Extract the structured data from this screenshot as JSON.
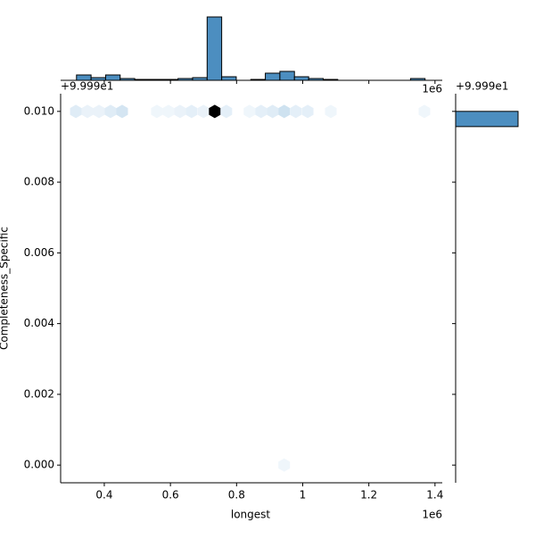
{
  "chart_data": {
    "type": "hexbin",
    "x_label": "longest",
    "y_label": "Completeness_Specific",
    "x_offset_label": "1e6",
    "y_offset_label": "+9.999e1",
    "marginal_x_offset_label": "1e6",
    "marginal_y_offset_label": "+9.999e1",
    "xlim": [
      0.268,
      1.422
    ],
    "xticks": [
      0.4,
      0.6,
      0.8,
      1.0,
      1.2,
      1.4
    ],
    "ylim": [
      -0.0005,
      0.0105
    ],
    "yticks": [
      {
        "value": 0,
        "label": "0.000"
      },
      {
        "value": 0.002,
        "label": "0.002"
      },
      {
        "value": 0.004,
        "label": "0.004"
      },
      {
        "value": 0.006,
        "label": "0.006"
      },
      {
        "value": 0.008,
        "label": "0.008"
      },
      {
        "value": 0.01,
        "label": "0.010"
      }
    ],
    "hexbins": {
      "x": [
        0.314,
        0.349,
        0.384,
        0.419,
        0.454,
        0.559,
        0.594,
        0.629,
        0.664,
        0.7,
        0.734,
        0.769,
        0.839,
        0.874,
        0.909,
        0.944,
        0.979,
        1.015,
        1.085,
        1.368,
        0.944
      ],
      "y": [
        0.01,
        0.01,
        0.01,
        0.01,
        0.01,
        0.01,
        0.01,
        0.01,
        0.01,
        0.01,
        0.01,
        0.01,
        0.01,
        0.01,
        0.01,
        0.01,
        0.01,
        0.01,
        0.01,
        0.01,
        0
      ],
      "counts": [
        4,
        2,
        2,
        4,
        6,
        1,
        1,
        2,
        3,
        2,
        71,
        3,
        1,
        3,
        4,
        7,
        3,
        3,
        1,
        1,
        1
      ]
    },
    "x_hist": {
      "color": "#4c8ec0",
      "bins": [
        0.316,
        0.36,
        0.404,
        0.448,
        0.492,
        0.536,
        0.579,
        0.623,
        0.667,
        0.711,
        0.755,
        0.799,
        0.843,
        0.887,
        0.931,
        0.975,
        1.018,
        1.062,
        1.106,
        1.15,
        1.194,
        1.238,
        1.282,
        1.326,
        1.37
      ],
      "counts": [
        6,
        3,
        6,
        2,
        1,
        1,
        1,
        2,
        3,
        71,
        4,
        0,
        1,
        8,
        10,
        4,
        2,
        1,
        0,
        0,
        0,
        0,
        0,
        2
      ]
    },
    "y_hist": {
      "color": "#4c8ec0",
      "bins": [
        0.00957,
        0.01
      ],
      "counts": [
        70
      ]
    }
  }
}
